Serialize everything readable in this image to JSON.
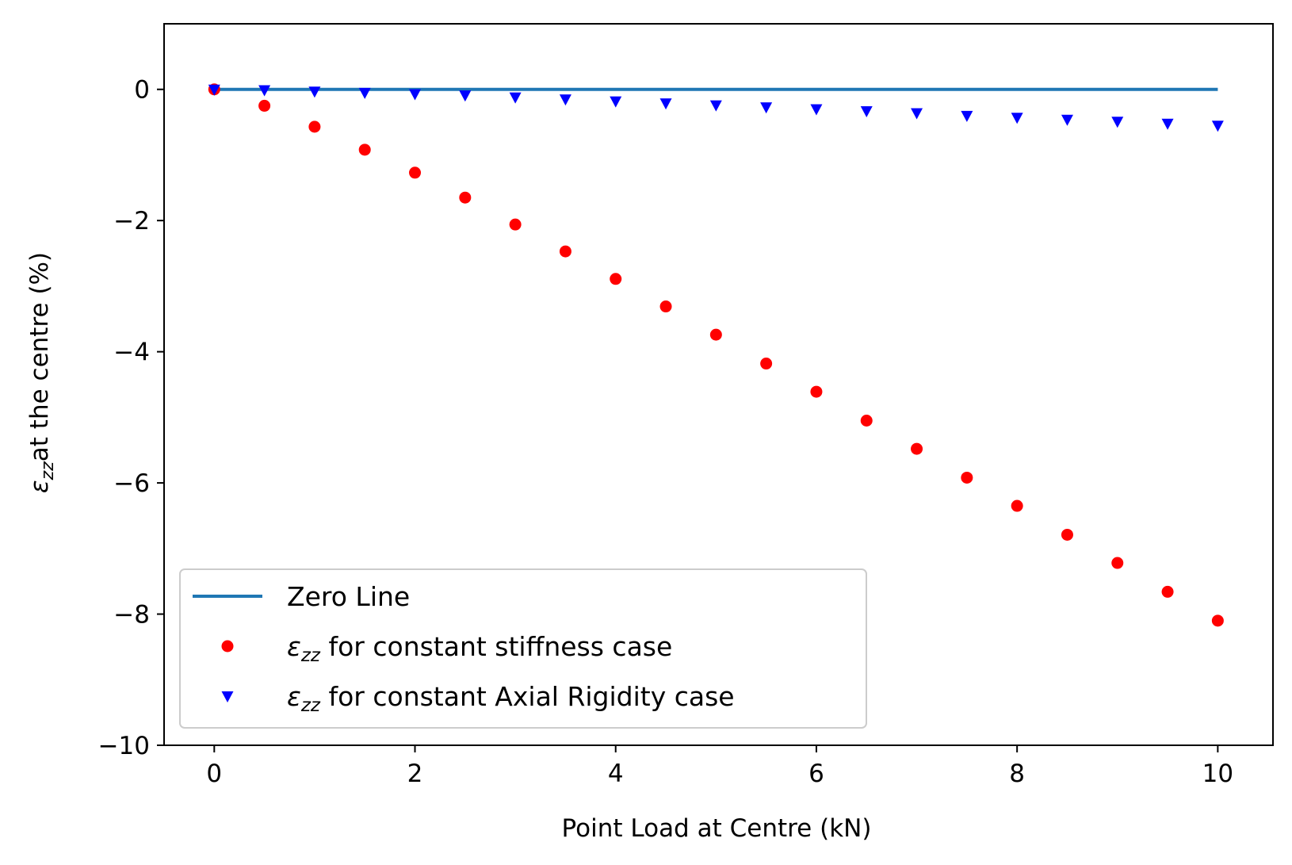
{
  "chart_data": {
    "type": "scatter",
    "title": "",
    "xlabel": "Point Load at Centre (kN)",
    "ylabel": "at the centre (%)",
    "ylabel_symbol": "ε",
    "ylabel_subscript": "zz",
    "xlim": [
      -0.5,
      10.55
    ],
    "ylim": [
      -10,
      1
    ],
    "xticks": [
      0,
      2,
      4,
      6,
      8,
      10
    ],
    "xtick_labels": [
      "0",
      "2",
      "4",
      "6",
      "8",
      "10"
    ],
    "yticks": [
      0,
      -2,
      -4,
      -6,
      -8,
      -10
    ],
    "ytick_labels": [
      "0",
      "−2",
      "−4",
      "−6",
      "−8",
      "−10"
    ],
    "grid": false,
    "legend_position": "lower-left",
    "x": [
      0,
      0.5,
      1,
      1.5,
      2,
      2.5,
      3,
      3.5,
      4,
      4.5,
      5,
      5.5,
      6,
      6.5,
      7,
      7.5,
      8,
      8.5,
      9,
      9.5,
      10
    ],
    "series": [
      {
        "name": "Zero Line",
        "kind": "line",
        "color": "#1f77b4",
        "values": [
          0,
          0,
          0,
          0,
          0,
          0,
          0,
          0,
          0,
          0,
          0,
          0,
          0,
          0,
          0,
          0,
          0,
          0,
          0,
          0,
          0
        ]
      },
      {
        "name": " for constant stiffness case",
        "name_symbol": "ε",
        "name_subscript": "zz",
        "kind": "scatter",
        "marker": "circle",
        "color": "#ff0000",
        "values": [
          0,
          -0.25,
          -0.57,
          -0.92,
          -1.27,
          -1.65,
          -2.06,
          -2.47,
          -2.89,
          -3.31,
          -3.74,
          -4.18,
          -4.61,
          -5.05,
          -5.48,
          -5.92,
          -6.35,
          -6.79,
          -7.22,
          -7.66,
          -8.1
        ]
      },
      {
        "name": " for constant Axial Rigidity case",
        "name_symbol": "ε",
        "name_subscript": "zz",
        "kind": "scatter",
        "marker": "triangle-down",
        "color": "#0000ff",
        "values": [
          0,
          -0.01,
          -0.03,
          -0.05,
          -0.07,
          -0.09,
          -0.12,
          -0.15,
          -0.18,
          -0.21,
          -0.24,
          -0.27,
          -0.3,
          -0.33,
          -0.36,
          -0.4,
          -0.43,
          -0.46,
          -0.49,
          -0.52,
          -0.55
        ]
      }
    ]
  }
}
